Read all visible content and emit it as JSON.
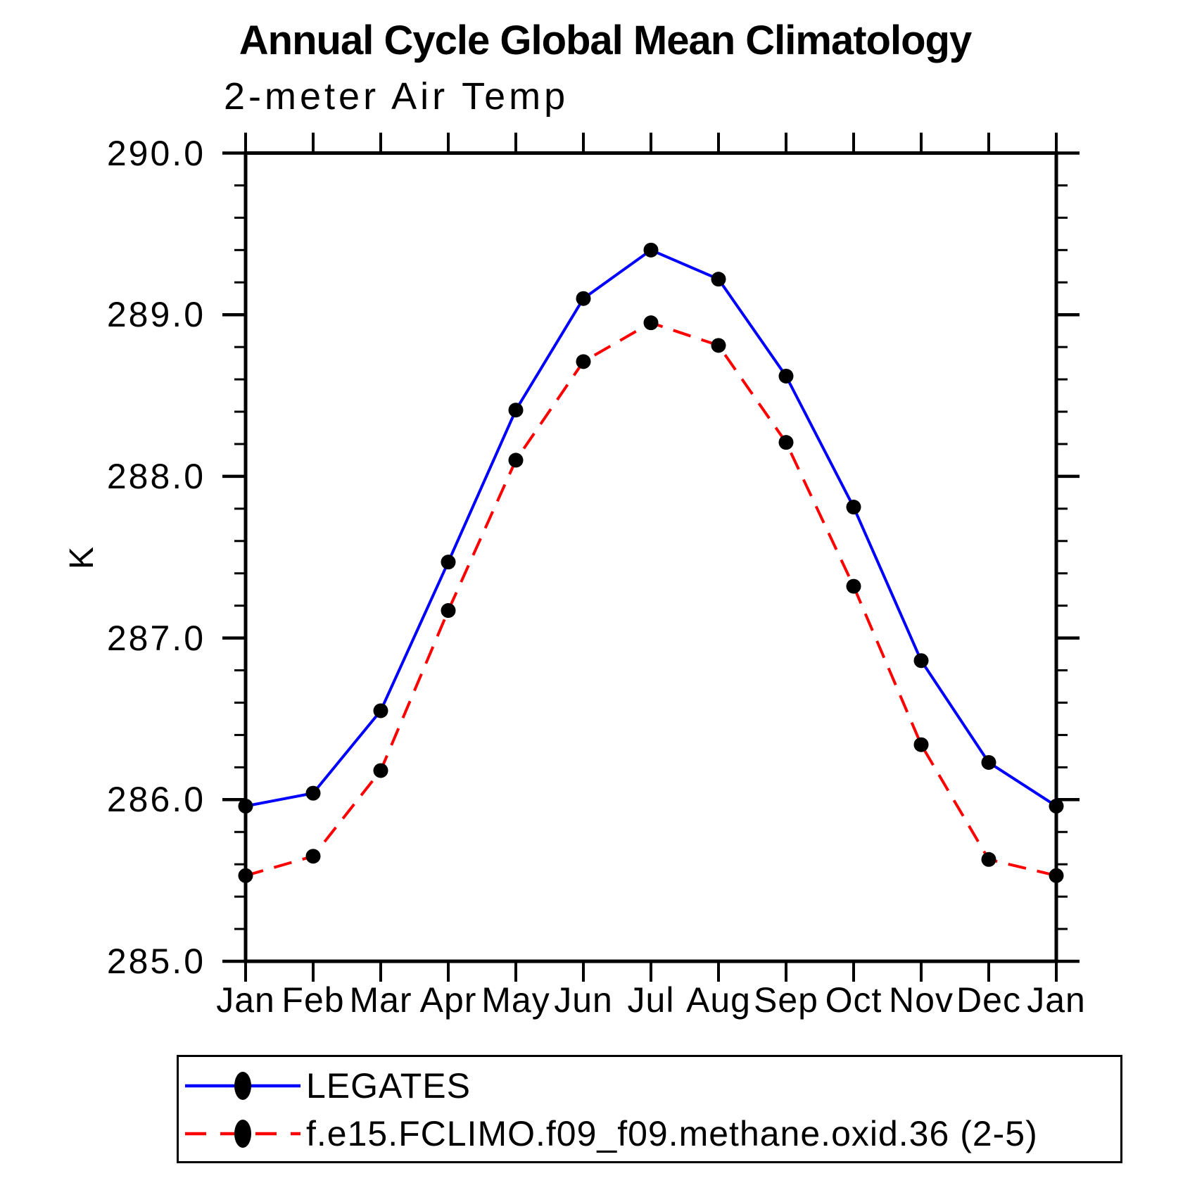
{
  "page": {
    "background": "#ffffff"
  },
  "chart_data": {
    "type": "line",
    "title": "Annual Cycle Global Mean Climatology",
    "subtitle": "2-meter Air Temp",
    "ylabel": "K",
    "ylim": [
      285.0,
      290.0
    ],
    "ytick_major_step": 1.0,
    "ytick_minor_step": 0.2,
    "ytick_labels": [
      "290.0",
      "289.0",
      "288.0",
      "287.0",
      "286.0",
      "285.0"
    ],
    "x_categories": [
      "Jan",
      "Feb",
      "Mar",
      "Apr",
      "May",
      "Jun",
      "Jul",
      "Aug",
      "Sep",
      "Oct",
      "Nov",
      "Dec",
      "Jan"
    ],
    "grid": false,
    "legend_position": "bottom-left",
    "axis_color": "#000000",
    "text_color": "#000000",
    "series": [
      {
        "name": "LEGATES",
        "color": "#0000ff",
        "line_style": "solid",
        "marker": "filled-dot",
        "marker_color": "#000000",
        "values": [
          285.96,
          286.04,
          286.55,
          287.47,
          288.41,
          289.1,
          289.4,
          289.22,
          288.62,
          287.81,
          286.86,
          286.23,
          285.96
        ]
      },
      {
        "name": "f.e15.FCLIMO.f09_f09.methane.oxid.36 (2-5)",
        "color": "#ff0000",
        "line_style": "dashed",
        "marker": "filled-dot",
        "marker_color": "#000000",
        "values": [
          285.53,
          285.65,
          286.18,
          287.17,
          288.1,
          288.71,
          288.95,
          288.81,
          288.21,
          287.32,
          286.34,
          285.63,
          285.53
        ]
      }
    ]
  }
}
